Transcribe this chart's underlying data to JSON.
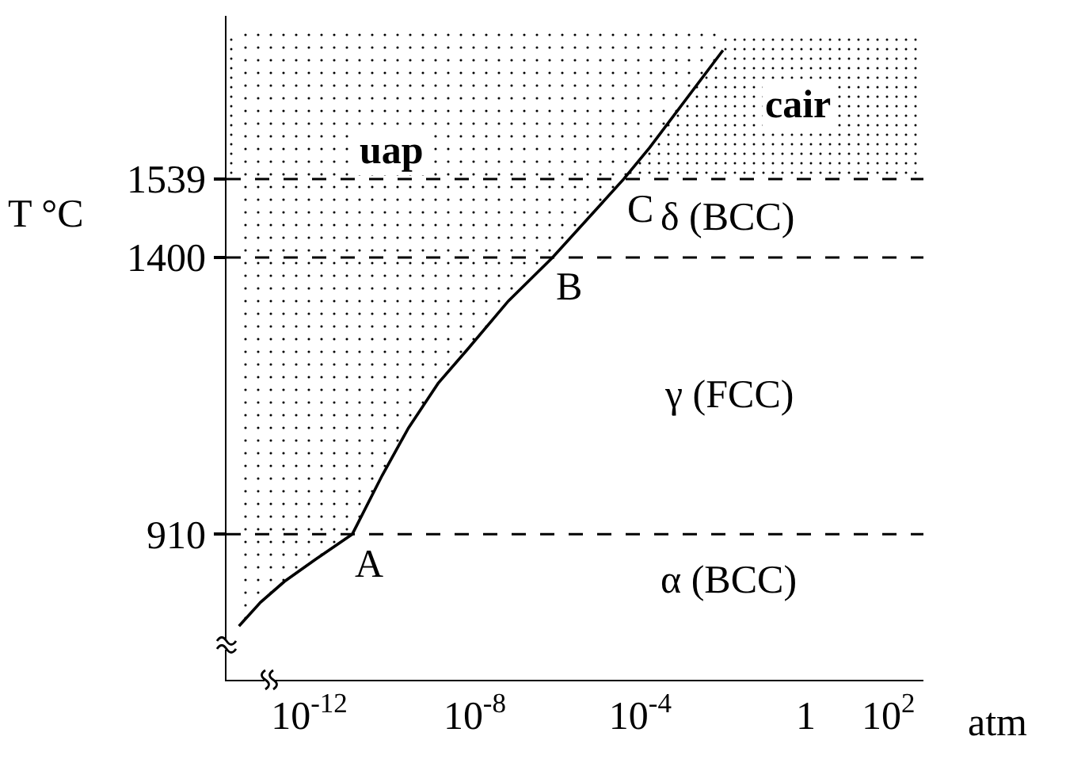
{
  "chart_data": {
    "type": "line",
    "xlabel": "atm",
    "ylabel": "T °C",
    "log": "x",
    "xlim": [
      1e-14,
      700
    ],
    "ylim": [
      652,
      1828
    ],
    "xticks": [
      {
        "value": 1e-12,
        "label": "10$^{-12}$"
      },
      {
        "value": 1e-08,
        "label": "10$^{-8}$"
      },
      {
        "value": 0.0001,
        "label": "10$^{-4}$"
      },
      1,
      {
        "value": 100,
        "label": "10$^{2}$"
      }
    ],
    "yticks": [
      910,
      1400,
      1539
    ],
    "series": [
      {
        "name": "uap",
        "color": "#000000",
        "x": [
          2e-14,
          6.6e-14,
          2.5e-13,
          1.4e-12,
          1.1e-11,
          5.8e-11,
          2.5e-10,
          1.3e-09,
          7e-09,
          6.5e-08,
          7.6e-07,
          4e-05,
          0.00017,
          0.01
        ],
        "values": [
          747,
          789,
          826,
          865,
          910,
          1014,
          1098,
          1177,
          1239,
          1323,
          1400,
          1539,
          1595,
          1767
        ],
        "lower": [
          747,
          789,
          826,
          865,
          910,
          1014,
          1098,
          1177,
          1239,
          1323,
          1400,
          1539,
          1595,
          1767
        ],
        "upper": [
          1800,
          1800,
          1800,
          1800,
          1800,
          1800,
          1800,
          1800,
          1800,
          1800,
          1800,
          1800,
          1800,
          1800
        ]
      }
    ],
    "ref_lines": [
      {
        "axis": "y",
        "value": 910,
        "color": "#000000",
        "line_style": "dashed"
      },
      {
        "axis": "y",
        "value": 1400,
        "color": "#000000",
        "line_style": "dashed"
      },
      {
        "axis": "y",
        "value": 1539,
        "color": "#000000",
        "line_style": "dashed"
      }
    ],
    "bands": [
      {
        "axis": "y",
        "from": 1539,
        "to": 1800,
        "label": "cair",
        "color": "#000000"
      }
    ],
    "annotations": [
      {
        "text": "A",
        "x": 1.1e-11,
        "y": 910
      },
      {
        "text": "B",
        "x": 7.6e-07,
        "y": 1400
      },
      {
        "text": "C",
        "x": 4e-05,
        "y": 1539
      },
      "δ (BCC)",
      "γ (FCC)",
      "α (BCC)"
    ]
  }
}
